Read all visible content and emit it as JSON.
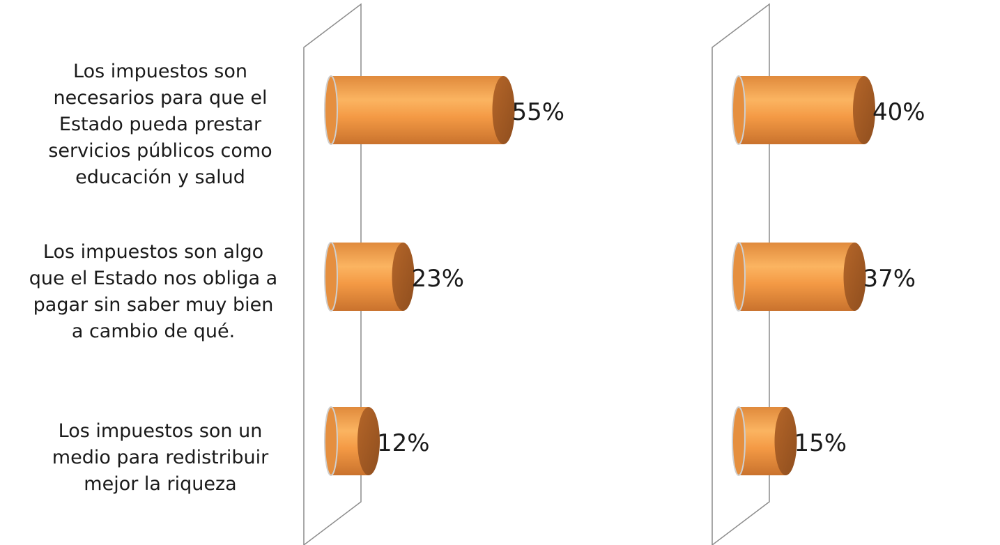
{
  "chart_data": {
    "type": "bar",
    "orientation": "horizontal",
    "style": "3d-cylinder",
    "categories": [
      "Los impuestos son necesarios para que el Estado pueda prestar servicios públicos como educación y salud",
      "Los impuestos son algo que el Estado nos obliga a pagar sin saber muy bien a cambio de qué.",
      "Los impuestos son un medio para redistribuir mejor la riqueza"
    ],
    "category_lines": [
      [
        "Los impuestos son",
        "necesarios para que el",
        "Estado pueda prestar",
        "servicios públicos como",
        "educación y salud"
      ],
      [
        "Los impuestos son algo",
        "que el Estado nos obliga a",
        "pagar sin saber muy bien",
        "a cambio de qué."
      ],
      [
        "Los impuestos son un",
        "medio para redistribuir",
        "mejor la riqueza"
      ]
    ],
    "panels": [
      {
        "values": [
          55,
          23,
          12
        ],
        "labels": [
          "55%",
          "23%",
          "12%"
        ]
      },
      {
        "values": [
          40,
          37,
          15
        ],
        "labels": [
          "40%",
          "37%",
          "15%"
        ]
      }
    ],
    "unit": "%",
    "grid": false,
    "colors": {
      "bar": "#f4a04a",
      "bar_dark": "#b8682a",
      "wall": "#8c8c8c"
    }
  }
}
